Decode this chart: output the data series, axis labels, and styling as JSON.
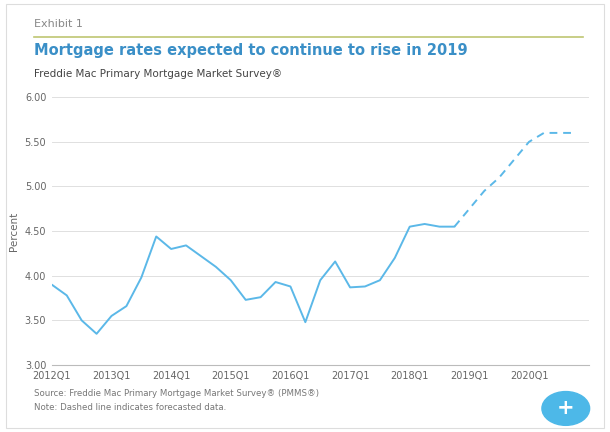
{
  "exhibit_label": "Exhibit 1",
  "title": "Mortgage rates expected to continue to rise in 2019",
  "subtitle": "Freddie Mac Primary Mortgage Market Survey®",
  "source_note": "Source: Freddie Mac Primary Mortgage Market Survey® (PMMS®)",
  "note": "Note: Dashed line indicates forecasted data.",
  "ylabel": "Percent",
  "ylim": [
    3.0,
    6.0
  ],
  "yticks": [
    3.0,
    3.5,
    4.0,
    4.5,
    5.0,
    5.5,
    6.0
  ],
  "line_color": "#5BB8E8",
  "background_color": "#FFFFFF",
  "outer_border_color": "#DDDDDD",
  "divider_color": "#BFC672",
  "x_labels": [
    "2012Q1",
    "2013Q1",
    "2014Q1",
    "2015Q1",
    "2016Q1",
    "2017Q1",
    "2018Q1",
    "2019Q1",
    "2020Q1",
    ""
  ],
  "solid_x": [
    0,
    1,
    2,
    3,
    4,
    5,
    6,
    7,
    8,
    9,
    10,
    11,
    12,
    13,
    14,
    15,
    16,
    17,
    18,
    19,
    20,
    21,
    22,
    23,
    24,
    25,
    26,
    27
  ],
  "solid_y": [
    3.9,
    3.78,
    3.5,
    3.35,
    3.55,
    3.66,
    3.98,
    4.44,
    4.3,
    4.34,
    4.22,
    4.1,
    3.95,
    3.73,
    3.76,
    3.93,
    3.88,
    3.48,
    3.95,
    4.16,
    3.87,
    3.88,
    3.95,
    4.2,
    4.55,
    4.58,
    4.55,
    4.55
  ],
  "dashed_x": [
    27,
    28,
    29,
    30,
    31,
    32,
    33,
    34,
    35
  ],
  "dashed_y": [
    4.55,
    4.75,
    4.95,
    5.1,
    5.3,
    5.5,
    5.6,
    5.6,
    5.6
  ],
  "n_total_ticks": 36,
  "tick_label_positions": [
    0,
    4,
    8,
    12,
    16,
    20,
    24,
    28,
    32,
    36
  ]
}
